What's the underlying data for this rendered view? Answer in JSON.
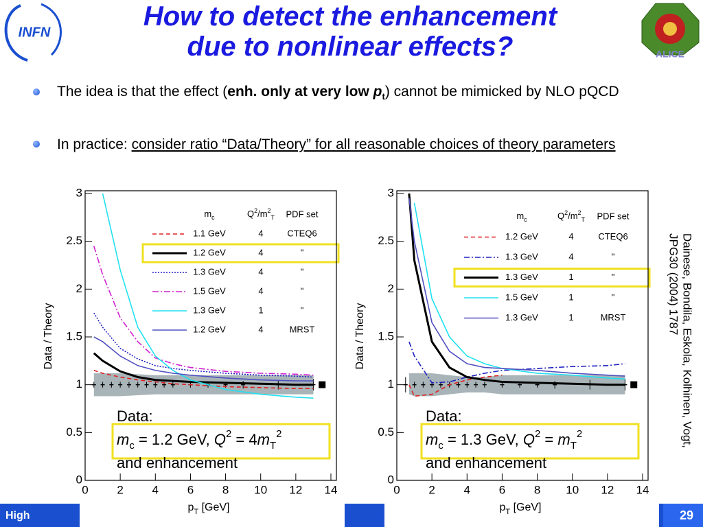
{
  "slide": {
    "title": [
      "How to detect the enhancement",
      "due to nonlinear effects?"
    ],
    "bullets": [
      [
        "The idea is that the effect (",
        "enh. only at very low ",
        "p",
        "t",
        ") cannot be mimicked by NLO pQCD"
      ],
      [
        "In practice: ",
        "consider ratio “Data/Theory” for all reasonable choices of theory parameters"
      ]
    ],
    "citation": [
      "Dainese, Bondila, Eskola, Kolhinen, Vogt,",
      "JPG30 (2004) 1787"
    ],
    "footer": "High",
    "page": "29",
    "logo_left": "INFN",
    "logo_right": "ALICE"
  },
  "chart_data": [
    {
      "type": "line",
      "x": [
        0.5,
        1,
        2,
        3,
        4,
        5,
        6,
        8,
        10,
        12,
        13
      ],
      "xlim": [
        0,
        14
      ],
      "xticks": [
        0,
        2,
        4,
        6,
        8,
        10,
        12,
        14
      ],
      "ylim": [
        0,
        3
      ],
      "yticks": [
        0,
        0.5,
        1,
        1.5,
        2,
        2.5,
        3
      ],
      "xlabel": [
        "p",
        "T",
        " [GeV]"
      ],
      "ylabel": "Data / Theory",
      "legend_header": {
        "mc": [
          "m",
          "c"
        ],
        "q": [
          "Q",
          "2",
          "/m",
          "2",
          "T"
        ],
        "pdf": "PDF set"
      },
      "series": [
        {
          "name": "1.1 GeV",
          "q2": "4",
          "pdf": "CTEQ6",
          "color": "#e02020",
          "values": [
            1.15,
            1.12,
            1.08,
            1.05,
            1.03,
            1.01,
            1.0,
            0.98,
            0.97,
            0.96,
            0.96
          ]
        },
        {
          "name": "1.2 GeV",
          "q2": "4",
          "pdf": "\"",
          "color": "#000000",
          "values": [
            1.33,
            1.25,
            1.14,
            1.08,
            1.05,
            1.04,
            1.03,
            1.02,
            1.01,
            1.0,
            1.0
          ]
        },
        {
          "name": "1.3 GeV",
          "q2": "4",
          "pdf": "\"",
          "color": "#2020c0",
          "values": [
            1.75,
            1.6,
            1.38,
            1.27,
            1.2,
            1.17,
            1.15,
            1.12,
            1.1,
            1.09,
            1.08
          ]
        },
        {
          "name": "1.5 GeV",
          "q2": "4",
          "pdf": "\"",
          "color": "#d020d0",
          "values": [
            2.45,
            2.15,
            1.7,
            1.45,
            1.28,
            1.22,
            1.18,
            1.14,
            1.12,
            1.11,
            1.1
          ]
        },
        {
          "name": "1.3 GeV",
          "q2": "1",
          "pdf": "\"",
          "color": "#20e0f0",
          "values": [
            null,
            3.0,
            2.2,
            1.6,
            1.3,
            1.15,
            1.05,
            0.95,
            0.9,
            0.87,
            0.86
          ]
        },
        {
          "name": "1.2 GeV",
          "q2": "4",
          "pdf": "MRST",
          "color": "#5050c0",
          "values": [
            1.5,
            1.45,
            1.3,
            1.2,
            1.15,
            1.12,
            1.1,
            1.07,
            1.05,
            1.04,
            1.04
          ]
        }
      ],
      "highlight_series": 1,
      "band": {
        "lower": [
          0.88,
          0.88,
          0.88,
          0.89,
          0.9,
          0.9,
          0.9,
          0.9,
          0.9,
          0.9,
          0.9
        ],
        "upper": [
          1.12,
          1.12,
          1.12,
          1.11,
          1.1,
          1.1,
          1.1,
          1.1,
          1.1,
          1.1,
          1.1
        ]
      },
      "points": {
        "x": [
          0.5,
          1,
          1.5,
          2,
          2.5,
          3,
          3.5,
          4,
          4.5,
          5,
          6,
          7,
          8,
          9,
          11,
          13
        ],
        "values": [
          1,
          1,
          1,
          1,
          1,
          1,
          1,
          1,
          1,
          1,
          1,
          1,
          1,
          1,
          1,
          1
        ],
        "errors": [
          0.03,
          0.03,
          0.03,
          0.03,
          0.03,
          0.03,
          0.03,
          0.03,
          0.03,
          0.03,
          0.03,
          0.03,
          0.03,
          0.04,
          0.05,
          0.06
        ]
      },
      "reference_marker": {
        "x": 13.5,
        "value": 1
      },
      "annotation": {
        "title": "Data:",
        "line": [
          "m",
          "c",
          " = 1.2 GeV, ",
          "Q",
          "2",
          " = 4",
          "m",
          "T",
          "2"
        ],
        "last": "and enhancement"
      }
    },
    {
      "type": "line",
      "x": [
        0.7,
        1,
        2,
        3,
        4,
        5,
        6,
        8,
        10,
        12,
        13
      ],
      "xlim": [
        0,
        14
      ],
      "xticks": [
        0,
        2,
        4,
        6,
        8,
        10,
        12,
        14
      ],
      "ylim": [
        0,
        3
      ],
      "yticks": [
        0,
        0.5,
        1,
        1.5,
        2,
        2.5,
        3
      ],
      "xlabel": [
        "p",
        "T",
        " [GeV]"
      ],
      "ylabel": "Data / Theory",
      "legend_header": {
        "mc": [
          "m",
          "c"
        ],
        "q": [
          "Q",
          "2",
          "/m",
          "2",
          "T"
        ],
        "pdf": "PDF set"
      },
      "series": [
        {
          "name": "1.2 GeV",
          "q2": "4",
          "pdf": "CTEQ6",
          "color": "#e02020",
          "values": [
            1.0,
            0.88,
            0.9,
            1.0,
            1.05,
            1.08,
            1.1,
            null,
            null,
            null,
            null
          ]
        },
        {
          "name": "1.3 GeV",
          "q2": "4",
          "pdf": "\"",
          "color": "#2020c0",
          "values": [
            1.45,
            1.3,
            1.02,
            1.03,
            1.08,
            1.12,
            1.15,
            1.17,
            1.19,
            1.2,
            1.22
          ]
        },
        {
          "name": "1.3 GeV",
          "q2": "1",
          "pdf": "\"",
          "color": "#000000",
          "values": [
            3.0,
            2.3,
            1.45,
            1.18,
            1.08,
            1.05,
            1.03,
            1.02,
            1.01,
            1.0,
            1.0
          ]
        },
        {
          "name": "1.5 GeV",
          "q2": "1",
          "pdf": "\"",
          "color": "#20e0f0",
          "values": [
            null,
            2.9,
            1.9,
            1.5,
            1.3,
            1.22,
            1.17,
            1.12,
            1.1,
            1.07,
            1.06
          ]
        },
        {
          "name": "1.3 GeV",
          "q2": "1",
          "pdf": "MRST",
          "color": "#5050c0",
          "values": [
            2.95,
            2.5,
            1.65,
            1.35,
            1.22,
            1.18,
            1.17,
            1.15,
            1.12,
            1.1,
            1.09
          ]
        }
      ],
      "highlight_series": 2,
      "band": {
        "lower": [
          0.9,
          0.88,
          0.88,
          0.9,
          0.92,
          0.92,
          0.9,
          0.9,
          0.9,
          0.9,
          0.9
        ],
        "upper": [
          1.12,
          1.12,
          1.12,
          1.1,
          1.08,
          1.08,
          1.1,
          1.1,
          1.1,
          1.1,
          1.1
        ]
      },
      "points": {
        "x": [
          0.5,
          1,
          1.5,
          2,
          2.5,
          3,
          3.5,
          4,
          4.5,
          5,
          6,
          7,
          8,
          9,
          11,
          13
        ],
        "values": [
          1,
          1,
          1,
          1,
          1,
          1,
          1,
          1,
          1,
          1,
          1,
          1,
          1,
          1,
          1,
          1
        ],
        "errors": [
          0.08,
          0.03,
          0.03,
          0.03,
          0.03,
          0.03,
          0.03,
          0.03,
          0.03,
          0.03,
          0.03,
          0.03,
          0.03,
          0.04,
          0.05,
          0.06
        ]
      },
      "reference_marker": {
        "x": 13.5,
        "value": 1
      },
      "annotation": {
        "title": "Data:",
        "line": [
          "m",
          "c",
          " = 1.3 GeV, ",
          "Q",
          "2",
          " = ",
          "m",
          "T",
          "2"
        ],
        "last": "and enhancement"
      }
    }
  ]
}
